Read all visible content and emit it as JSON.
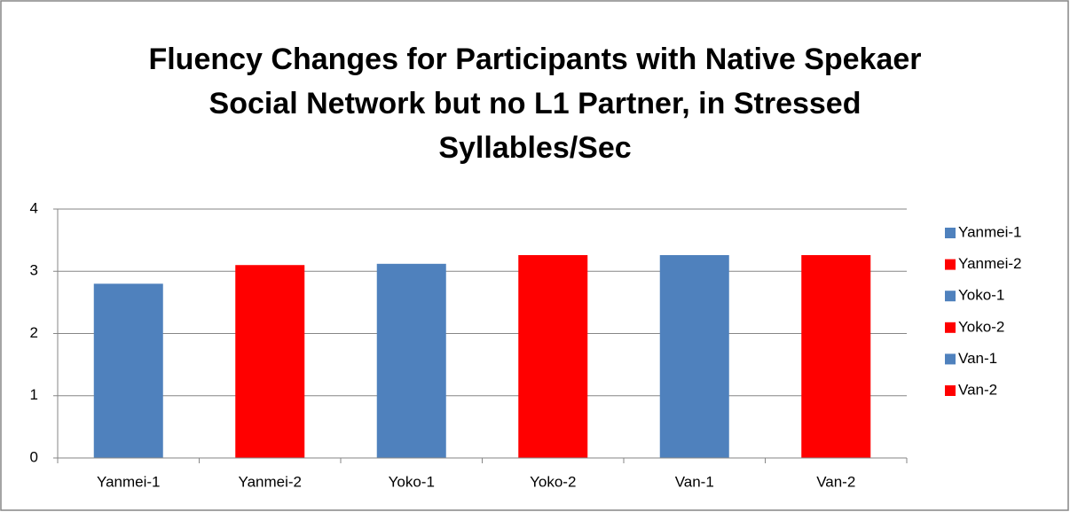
{
  "chart_data": {
    "type": "bar",
    "title": "Fluency Changes for Participants with Native Spekaer Social Network but no L1 Partner, in Stressed Syllables/Sec",
    "categories": [
      "Yanmei-1",
      "Yanmei-2",
      "Yoko-1",
      "Yoko-2",
      "Van-1",
      "Van-2"
    ],
    "values": [
      2.8,
      3.1,
      3.12,
      3.26,
      3.26,
      3.26
    ],
    "colors": [
      "#4f81bd",
      "#ff0000",
      "#4f81bd",
      "#ff0000",
      "#4f81bd",
      "#ff0000"
    ],
    "ylim": [
      0,
      4
    ],
    "yticks": [
      0,
      1,
      2,
      3,
      4
    ],
    "grid": true,
    "legend": "right"
  }
}
